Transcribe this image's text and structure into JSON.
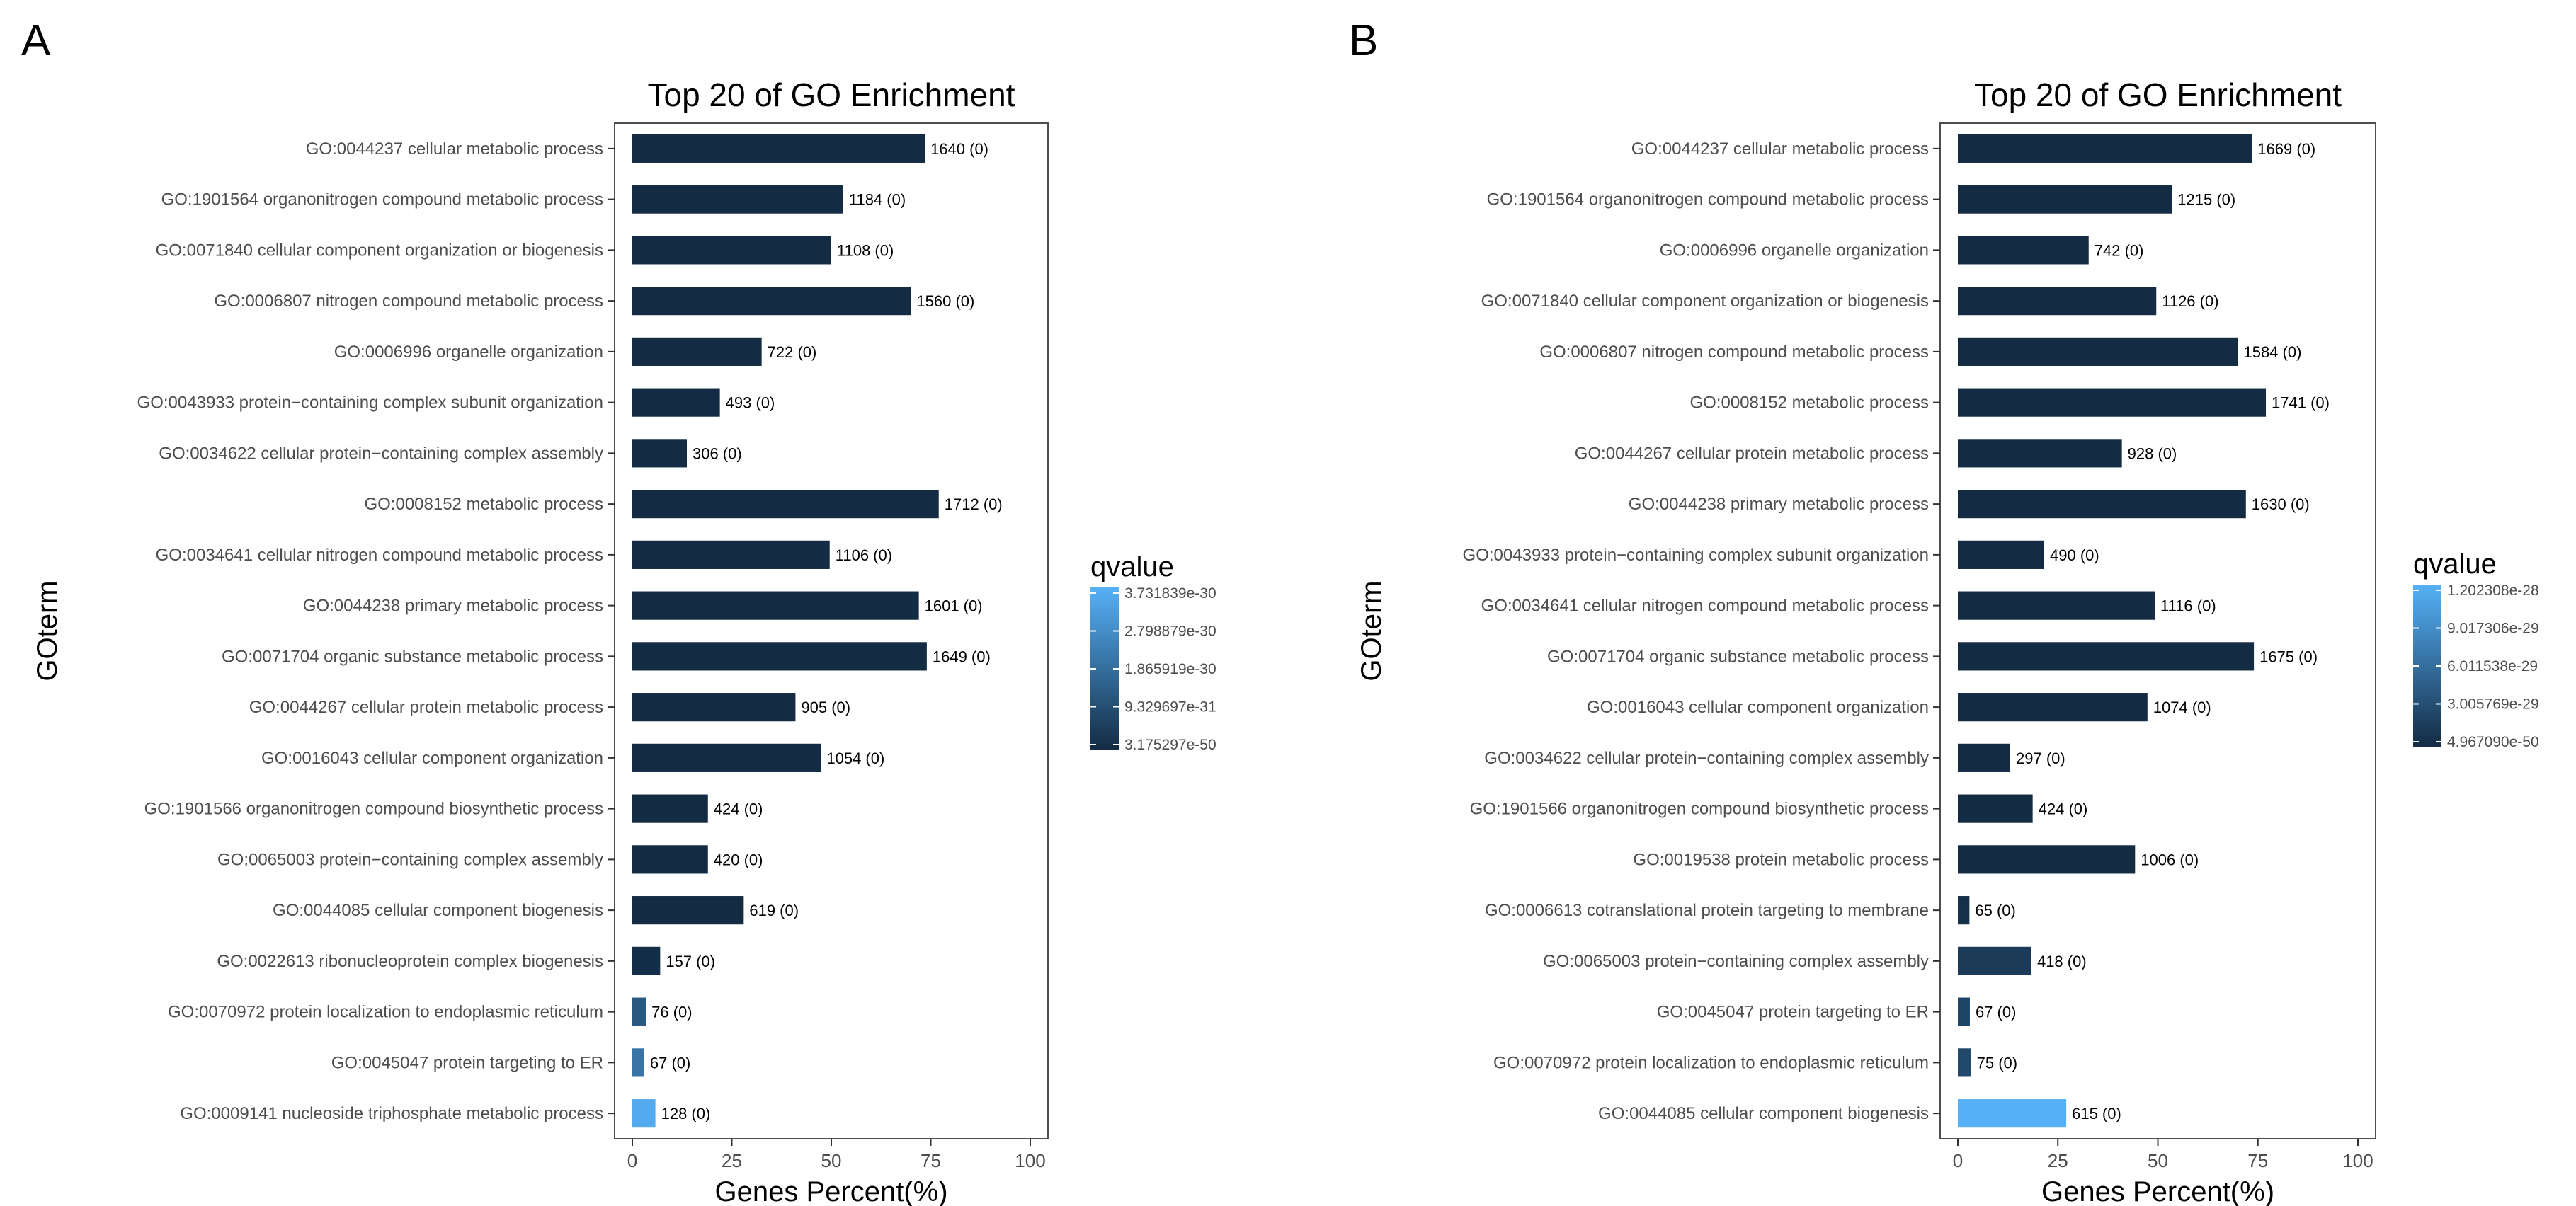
{
  "figure": {
    "colors": {
      "low": "#132B43",
      "high": "#56B1F7",
      "axis_text": "#4d4d4d",
      "label_text": "#000000",
      "panel_border": "#4d4d4d",
      "tick": "#333333"
    }
  },
  "chart_data": [
    {
      "panel_label": "A",
      "type": "bar",
      "orientation": "horizontal",
      "title": "Top 20 of GO Enrichment",
      "xlabel": "Genes Percent(%)",
      "ylabel": "GOterm",
      "xlim": [
        0,
        100
      ],
      "xticks": [
        "0",
        "25",
        "50",
        "75",
        "100"
      ],
      "categories": [
        "GO:0044237 cellular metabolic process",
        "GO:1901564 organonitrogen compound metabolic process",
        "GO:0071840 cellular component organization or biogenesis",
        "GO:0006807 nitrogen compound metabolic process",
        "GO:0006996 organelle organization",
        "GO:0043933 protein−containing complex subunit organization",
        "GO:0034622 cellular protein−containing complex assembly",
        "GO:0008152 metabolic process",
        "GO:0034641 cellular nitrogen compound metabolic process",
        "GO:0044238 primary metabolic process",
        "GO:0071704 organic substance metabolic process",
        "GO:0044267 cellular protein metabolic process",
        "GO:0016043 cellular component organization",
        "GO:1901566 organonitrogen compound biosynthetic process",
        "GO:0065003 protein−containing complex assembly",
        "GO:0044085 cellular component biogenesis",
        "GO:0022613 ribonucleoprotein complex biogenesis",
        "GO:0070972 protein localization to endoplasmic reticulum",
        "GO:0045047 protein targeting to ER",
        "GO:0009141 nucleoside triphosphate metabolic process"
      ],
      "values": [
        73.5,
        53,
        50,
        70,
        32.5,
        22,
        13.7,
        77,
        49.6,
        72,
        74,
        41,
        47.4,
        19,
        19,
        28,
        7,
        3.4,
        3,
        5.8
      ],
      "data_labels": [
        "1640 (0)",
        "1184 (0)",
        "1108 (0)",
        "1560 (0)",
        "722 (0)",
        "493 (0)",
        "306 (0)",
        "1712 (0)",
        "1106 (0)",
        "1601 (0)",
        "1649 (0)",
        "905 (0)",
        "1054 (0)",
        "424 (0)",
        "420 (0)",
        "619 (0)",
        "157 (0)",
        "76 (0)",
        "67 (0)",
        "128 (0)"
      ],
      "color_fraction": [
        0,
        0,
        0,
        0,
        0,
        0,
        0,
        0,
        0,
        0,
        0,
        0,
        0,
        0,
        0,
        0,
        0.02,
        0.35,
        0.55,
        0.95
      ],
      "legend": {
        "title": "qvalue",
        "position": "right",
        "labels": [
          "3.731839e-30",
          "2.798879e-30",
          "1.865919e-30",
          "9.329697e-31",
          "3.175297e-50"
        ]
      }
    },
    {
      "panel_label": "B",
      "type": "bar",
      "orientation": "horizontal",
      "title": "Top 20 of GO Enrichment",
      "xlabel": "Genes Percent(%)",
      "ylabel": "GOterm",
      "xlim": [
        0,
        100
      ],
      "xticks": [
        "0",
        "25",
        "50",
        "75",
        "100"
      ],
      "categories": [
        "GO:0044237 cellular metabolic process",
        "GO:1901564 organonitrogen compound metabolic process",
        "GO:0006996 organelle organization",
        "GO:0071840 cellular component organization or biogenesis",
        "GO:0006807 nitrogen compound metabolic process",
        "GO:0008152 metabolic process",
        "GO:0044267 cellular protein metabolic process",
        "GO:0044238 primary metabolic process",
        "GO:0043933 protein−containing complex subunit organization",
        "GO:0034641 cellular nitrogen compound metabolic process",
        "GO:0071704 organic substance metabolic process",
        "GO:0016043 cellular component organization",
        "GO:0034622 cellular protein−containing complex assembly",
        "GO:1901566 organonitrogen compound biosynthetic process",
        "GO:0019538 protein metabolic process",
        "GO:0006613 cotranslational protein targeting to membrane",
        "GO:0065003 protein−containing complex assembly",
        "GO:0045047 protein targeting to ER",
        "GO:0070972 protein localization to endoplasmic reticulum",
        "GO:0044085 cellular component biogenesis"
      ],
      "values": [
        73.5,
        53.5,
        32.7,
        49.6,
        70,
        77,
        41,
        72,
        21.6,
        49.2,
        74,
        47.4,
        13.1,
        18.7,
        44.3,
        2.9,
        18.4,
        3,
        3.3,
        27.1
      ],
      "data_labels": [
        "1669 (0)",
        "1215 (0)",
        "742 (0)",
        "1126 (0)",
        "1584 (0)",
        "1741 (0)",
        "928 (0)",
        "1630 (0)",
        "490 (0)",
        "1116 (0)",
        "1675 (0)",
        "1074 (0)",
        "297 (0)",
        "424 (0)",
        "1006 (0)",
        "65 (0)",
        "418 (0)",
        "67 (0)",
        "75 (0)",
        "615 (0)"
      ],
      "color_fraction": [
        0,
        0,
        0,
        0,
        0,
        0,
        0,
        0,
        0,
        0,
        0,
        0,
        0,
        0,
        0,
        0.04,
        0.12,
        0.2,
        0.22,
        1.0
      ],
      "legend": {
        "title": "qvalue",
        "position": "right",
        "labels": [
          "1.202308e-28",
          "9.017306e-29",
          "6.011538e-29",
          "3.005769e-29",
          "4.967090e-50"
        ]
      }
    }
  ]
}
